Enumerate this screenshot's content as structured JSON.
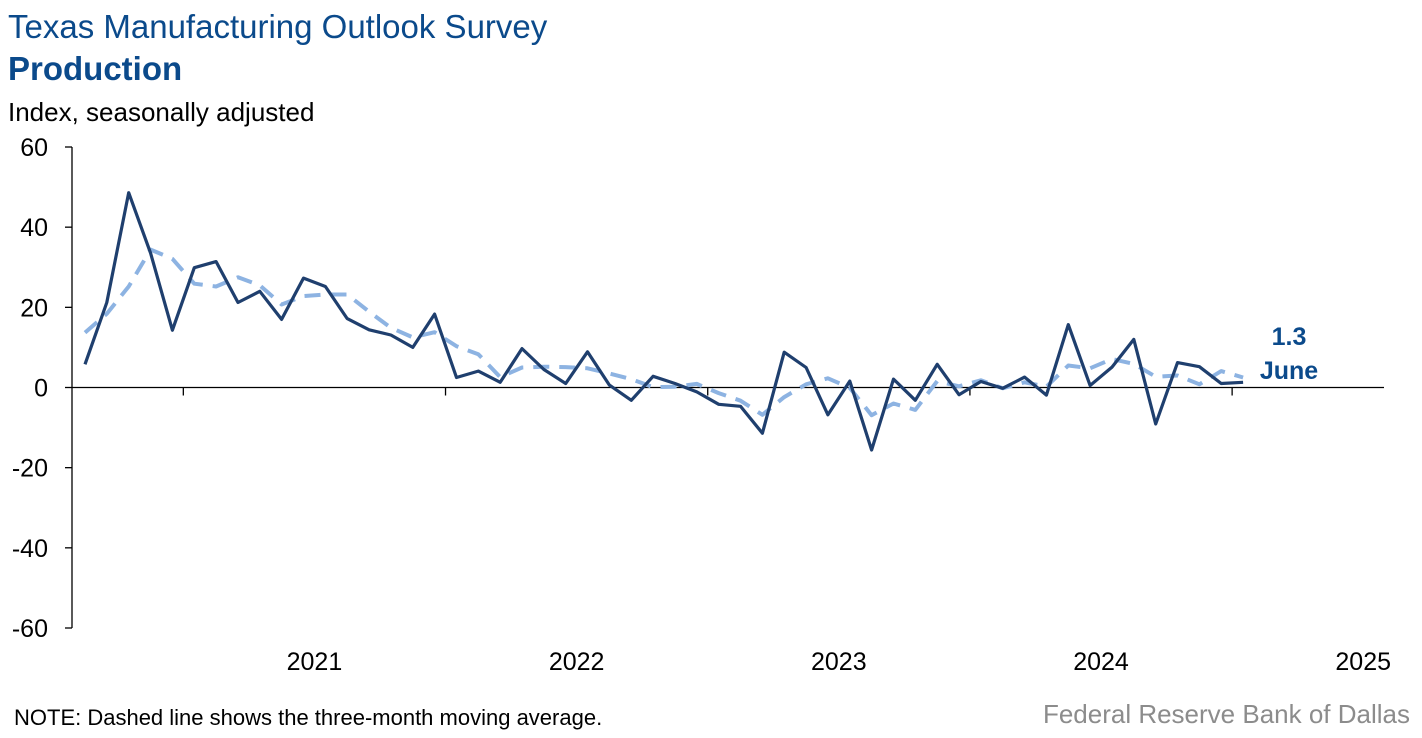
{
  "header": {
    "title": "Texas Manufacturing Outlook Survey",
    "subtitle": "Production",
    "units": "Index, seasonally adjusted"
  },
  "footer": {
    "note": "NOTE: Dashed line shows the three-month moving average.",
    "source": "Federal Reserve Bank of Dallas"
  },
  "colors": {
    "series": "#1F3F6E",
    "moving_average": "#8DB3E2",
    "title": "#0B4A8B",
    "source": "#8C8C8C"
  },
  "chart_data": {
    "type": "line",
    "title": "Texas Manufacturing Outlook Survey",
    "subtitle": "Production",
    "ylabel": "Index, seasonally adjusted",
    "ylim": [
      -60,
      60
    ],
    "yticks": [
      60,
      40,
      20,
      0,
      -20,
      -40,
      -60
    ],
    "xticks": [
      "2021",
      "2022",
      "2023",
      "2024",
      "2025"
    ],
    "x_start": "2020-08",
    "x_end": "2025-06",
    "grid": false,
    "annotation": {
      "value": "1.3",
      "label": "June"
    },
    "series": [
      {
        "values": [
          5.8,
          21.2,
          48.6,
          33.5,
          14.3,
          29.9,
          31.4,
          21.2,
          24.0,
          17.0,
          27.3,
          25.2,
          17.2,
          14.4,
          13.1,
          10.0,
          18.3,
          2.5,
          4.1,
          1.3,
          9.7,
          4.5,
          1.0,
          8.9,
          0.6,
          -3.2,
          2.8,
          1.0,
          -1.1,
          -4.2,
          -4.7,
          -11.4,
          8.8,
          5.0,
          -6.8,
          1.6,
          -15.6,
          2.1,
          -3.2,
          5.8,
          -1.8,
          1.5,
          -0.2,
          2.6,
          -1.9,
          15.7,
          0.5,
          5.1,
          12.0,
          -9.1,
          6.2,
          5.2,
          1.0,
          1.3
        ]
      },
      {
        "values": [
          13.7,
          18.4,
          25.2,
          34.4,
          32.1,
          25.9,
          25.2,
          27.5,
          25.5,
          20.7,
          22.8,
          23.2,
          23.2,
          18.9,
          14.9,
          12.5,
          13.8,
          10.3,
          8.3,
          2.6,
          5.0,
          5.2,
          5.1,
          4.8,
          3.5,
          2.1,
          0.1,
          0.2,
          0.9,
          -1.4,
          -3.3,
          -6.8,
          -2.4,
          0.8,
          2.3,
          -0.1,
          -6.9,
          -4.0,
          -5.6,
          1.6,
          0.3,
          1.8,
          -0.2,
          1.3,
          0.2,
          5.5,
          4.8,
          7.1,
          5.9,
          2.7,
          3.0,
          0.8,
          4.1,
          2.5
        ]
      }
    ]
  }
}
